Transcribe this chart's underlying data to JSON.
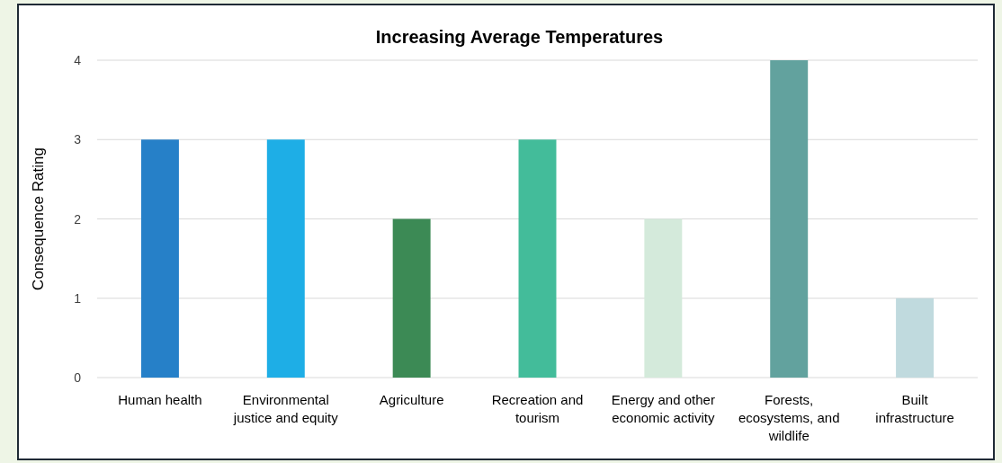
{
  "chart_data": {
    "type": "bar",
    "title": "Increasing Average Temperatures",
    "ylabel": "Consequence Rating",
    "categories": [
      "Human health",
      "Environmental justice and equity",
      "Agriculture",
      "Recreation and tourism",
      "Energy and other economic activity",
      "Forests, ecosystems, and wildlife",
      "Built infrastructure"
    ],
    "values": [
      3,
      3,
      2,
      3,
      2,
      4,
      1
    ],
    "colors": [
      "#2680c8",
      "#1eaee6",
      "#3c8a55",
      "#43bc9a",
      "#d4eadb",
      "#62a29e",
      "#c0dade"
    ],
    "ylim": [
      0,
      4
    ],
    "yticks": [
      0,
      1,
      2,
      3,
      4
    ],
    "grid": true
  }
}
